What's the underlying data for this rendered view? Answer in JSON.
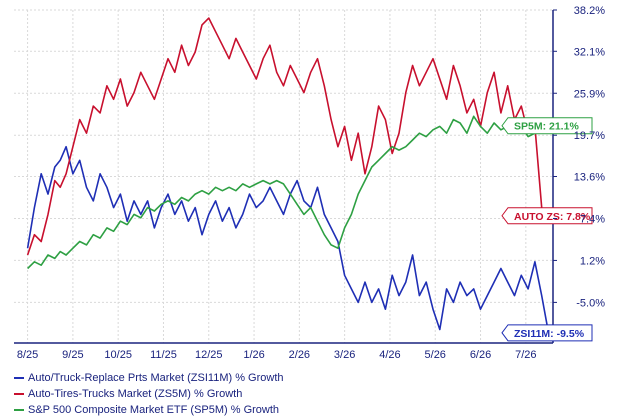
{
  "chart_data": {
    "type": "line",
    "title": "",
    "xlabel": "",
    "ylabel": "",
    "ylim": [
      -11,
      38.2
    ],
    "yticks": [
      38.2,
      32.1,
      25.9,
      19.7,
      13.6,
      7.4,
      1.2,
      -5.0
    ],
    "yticks_labeled": [
      "38.2%",
      "32.1%",
      "25.9%",
      "19.7%",
      "13.6%",
      "7.4%",
      "1.2%",
      "-5.0%"
    ],
    "x_ticks": [
      "8/25",
      "9/25",
      "10/25",
      "11/25",
      "12/25",
      "1/26",
      "2/26",
      "3/26",
      "4/26",
      "5/26",
      "6/26",
      "7/26"
    ],
    "grid": true,
    "series": [
      {
        "name": "Auto/Truck-Replace Prts Market (ZSI11M) % Growth",
        "tag": "ZSI11M: -9.5%",
        "color": "#1f2fb5",
        "x": [
          0.0,
          0.15,
          0.3,
          0.45,
          0.6,
          0.72,
          0.85,
          1.0,
          1.15,
          1.3,
          1.45,
          1.6,
          1.75,
          1.9,
          2.05,
          2.2,
          2.35,
          2.5,
          2.65,
          2.8,
          2.95,
          3.1,
          3.25,
          3.4,
          3.55,
          3.7,
          3.85,
          4.0,
          4.15,
          4.3,
          4.45,
          4.6,
          4.75,
          4.9,
          5.05,
          5.2,
          5.35,
          5.5,
          5.65,
          5.8,
          5.95,
          6.1,
          6.25,
          6.4,
          6.55,
          6.7,
          6.85,
          7.0,
          7.15,
          7.3,
          7.45,
          7.6,
          7.75,
          7.9,
          8.05,
          8.2,
          8.35,
          8.5,
          8.65,
          8.8,
          8.95,
          9.1,
          9.25,
          9.4,
          9.55,
          9.7,
          9.85,
          10.0,
          10.15,
          10.3,
          10.45,
          10.6,
          10.75,
          10.9,
          11.05,
          11.2,
          11.35,
          11.5
        ],
        "y": [
          3,
          9,
          14,
          11,
          15,
          16,
          18,
          14,
          16,
          12,
          10,
          14,
          12,
          9,
          11,
          7,
          10,
          8,
          10,
          6,
          9,
          11,
          8,
          10,
          7,
          9,
          5,
          8,
          10,
          7,
          9,
          6,
          8,
          11,
          9,
          10,
          12,
          10,
          8,
          11,
          13,
          10,
          9,
          12,
          8,
          6,
          4,
          -1,
          -3,
          -5,
          -2,
          -5,
          -3,
          -6,
          -1,
          -4,
          -2,
          2,
          -4,
          -2,
          -6,
          -9,
          -3,
          -5,
          -2,
          -4,
          -3,
          -6,
          -4,
          -2,
          0,
          -2,
          -4,
          -1,
          -3,
          1,
          -4,
          -9.5
        ]
      },
      {
        "name": "Auto-Tires-Trucks Market (ZS5M) % Growth",
        "tag": "AUTO ZS: 7.8%",
        "color": "#c8102e",
        "x": [
          0.0,
          0.15,
          0.3,
          0.45,
          0.6,
          0.72,
          0.85,
          1.0,
          1.15,
          1.3,
          1.45,
          1.6,
          1.75,
          1.9,
          2.05,
          2.2,
          2.35,
          2.5,
          2.65,
          2.8,
          2.95,
          3.1,
          3.25,
          3.4,
          3.55,
          3.7,
          3.85,
          4.0,
          4.15,
          4.3,
          4.45,
          4.6,
          4.75,
          4.9,
          5.05,
          5.2,
          5.35,
          5.5,
          5.65,
          5.8,
          5.95,
          6.1,
          6.25,
          6.4,
          6.55,
          6.7,
          6.85,
          7.0,
          7.15,
          7.3,
          7.45,
          7.6,
          7.75,
          7.9,
          8.05,
          8.2,
          8.35,
          8.5,
          8.65,
          8.8,
          8.95,
          9.1,
          9.25,
          9.4,
          9.55,
          9.7,
          9.85,
          10.0,
          10.15,
          10.3,
          10.45,
          10.6,
          10.75,
          10.9,
          11.05,
          11.2,
          11.35,
          11.5
        ],
        "y": [
          2,
          5,
          4,
          8,
          13,
          12,
          14,
          18,
          22,
          20,
          24,
          23,
          27,
          25,
          28,
          24,
          26,
          29,
          27,
          25,
          28,
          31,
          29,
          33,
          30,
          32,
          36,
          37,
          35,
          33,
          31,
          34,
          32,
          30,
          28,
          31,
          33,
          29,
          27,
          30,
          28,
          26,
          29,
          31,
          27,
          22,
          18,
          21,
          16,
          20,
          14,
          18,
          24,
          22,
          17,
          20,
          26,
          30,
          27,
          29,
          31,
          28,
          25,
          30,
          27,
          23,
          25,
          21,
          26,
          29,
          23,
          27,
          22,
          24,
          20,
          21,
          9,
          7.8
        ]
      },
      {
        "name": "S&P 500 Composite Market ETF (SP5M) % Growth",
        "tag": "SP5M: 21.1%",
        "color": "#2ea043",
        "x": [
          0.0,
          0.15,
          0.3,
          0.45,
          0.6,
          0.72,
          0.85,
          1.0,
          1.15,
          1.3,
          1.45,
          1.6,
          1.75,
          1.9,
          2.05,
          2.2,
          2.35,
          2.5,
          2.65,
          2.8,
          2.95,
          3.1,
          3.25,
          3.4,
          3.55,
          3.7,
          3.85,
          4.0,
          4.15,
          4.3,
          4.45,
          4.6,
          4.75,
          4.9,
          5.05,
          5.2,
          5.35,
          5.5,
          5.65,
          5.8,
          5.95,
          6.1,
          6.25,
          6.4,
          6.55,
          6.7,
          6.85,
          7.0,
          7.15,
          7.3,
          7.45,
          7.6,
          7.75,
          7.9,
          8.05,
          8.2,
          8.35,
          8.5,
          8.65,
          8.8,
          8.95,
          9.1,
          9.25,
          9.4,
          9.55,
          9.7,
          9.85,
          10.0,
          10.15,
          10.3,
          10.45,
          10.6,
          10.75,
          10.9,
          11.05,
          11.2,
          11.35,
          11.5
        ],
        "y": [
          0,
          1,
          0.5,
          2,
          1.5,
          2.5,
          2,
          3,
          4,
          3.5,
          5,
          4.5,
          6,
          5.5,
          7,
          6.5,
          8,
          7.5,
          9,
          8.5,
          9.5,
          10,
          9.5,
          10.5,
          10,
          11,
          11.5,
          11,
          12,
          11.5,
          12,
          11.5,
          12.5,
          12,
          12.5,
          13,
          12.5,
          13,
          12.5,
          11,
          9.5,
          8,
          9,
          7,
          5,
          3.5,
          3,
          6,
          8,
          11,
          13,
          15,
          16,
          17,
          18,
          17.5,
          18,
          19,
          20,
          19.5,
          20.5,
          21,
          20,
          22,
          21.5,
          20,
          22.5,
          21,
          20,
          21.5,
          20.5,
          21,
          22,
          21,
          19.5,
          20,
          21,
          21.1
        ]
      }
    ]
  }
}
